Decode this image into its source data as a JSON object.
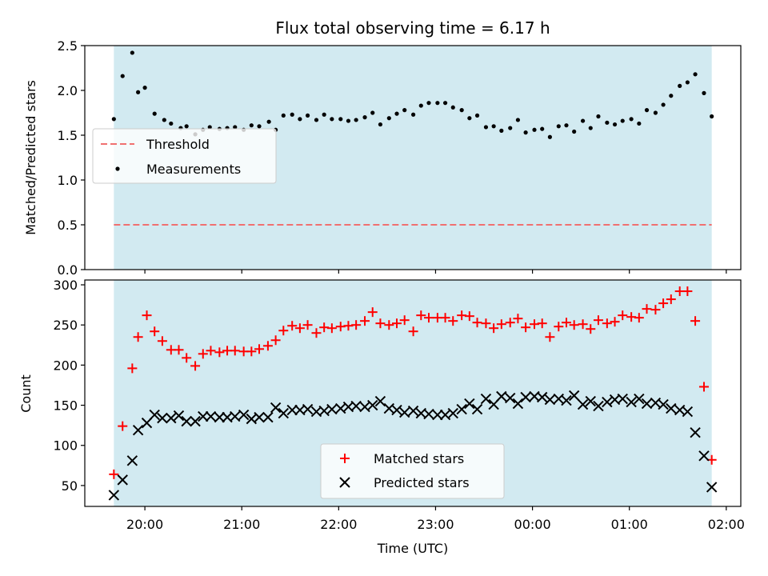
{
  "chart_data": [
    {
      "type": "scatter",
      "title": "Flux total observing time = 6.17 h",
      "ylabel": "Matched/Predicted stars",
      "ylim": [
        0,
        2.5
      ],
      "yticks": [
        "0.0",
        "0.5",
        "1.0",
        "1.5",
        "2.0",
        "2.5"
      ],
      "shaded_span_hours": [
        19.68,
        25.85
      ],
      "shade_color": "#add8e6",
      "legend": {
        "placement": "center-left",
        "threshold_label": "Threshold",
        "measurements_label": "Measurements"
      },
      "threshold": {
        "value": 0.5,
        "color": "#f07070"
      },
      "measurements": {
        "color": "#000000",
        "x": [
          19.68,
          19.77,
          19.87,
          19.93,
          20.0,
          20.1,
          20.2,
          20.27,
          20.37,
          20.43,
          20.52,
          20.6,
          20.67,
          20.77,
          20.85,
          20.93,
          21.02,
          21.1,
          21.18,
          21.28,
          21.35,
          21.43,
          21.52,
          21.6,
          21.68,
          21.77,
          21.85,
          21.93,
          22.02,
          22.1,
          22.18,
          22.27,
          22.35,
          22.43,
          22.52,
          22.6,
          22.68,
          22.77,
          22.85,
          22.93,
          23.02,
          23.1,
          23.18,
          23.27,
          23.35,
          23.43,
          23.52,
          23.6,
          23.68,
          23.77,
          23.85,
          23.93,
          24.02,
          24.1,
          24.18,
          24.27,
          24.35,
          24.43,
          24.52,
          24.6,
          24.68,
          24.77,
          24.85,
          24.93,
          25.02,
          25.1,
          25.18,
          25.27,
          25.35,
          25.43,
          25.52,
          25.6,
          25.68,
          25.77,
          25.85
        ],
        "y": [
          1.68,
          2.16,
          2.42,
          1.98,
          2.03,
          1.74,
          1.67,
          1.63,
          1.58,
          1.6,
          1.51,
          1.56,
          1.59,
          1.57,
          1.58,
          1.59,
          1.56,
          1.61,
          1.6,
          1.65,
          1.56,
          1.72,
          1.73,
          1.68,
          1.72,
          1.67,
          1.73,
          1.68,
          1.68,
          1.66,
          1.67,
          1.7,
          1.75,
          1.62,
          1.69,
          1.74,
          1.78,
          1.73,
          1.83,
          1.86,
          1.86,
          1.86,
          1.81,
          1.78,
          1.69,
          1.72,
          1.59,
          1.6,
          1.55,
          1.58,
          1.67,
          1.53,
          1.56,
          1.57,
          1.48,
          1.6,
          1.61,
          1.54,
          1.66,
          1.58,
          1.71,
          1.64,
          1.62,
          1.66,
          1.68,
          1.63,
          1.78,
          1.75,
          1.84,
          1.94,
          2.05,
          2.09,
          2.18,
          1.97,
          1.71
        ]
      }
    },
    {
      "type": "scatter",
      "ylabel": "Count",
      "xlabel": "Time (UTC)",
      "ylim": [
        24,
        306
      ],
      "yticks": [
        "50",
        "100",
        "150",
        "200",
        "250",
        "300"
      ],
      "xticks": [
        "20:00",
        "21:00",
        "22:00",
        "23:00",
        "00:00",
        "01:00",
        "02:00"
      ],
      "xlim_hours": [
        19.38,
        26.15
      ],
      "shaded_span_hours": [
        19.68,
        25.85
      ],
      "shade_color": "#add8e6",
      "legend": {
        "placement": "lower-center"
      },
      "series": [
        {
          "name": "Matched stars",
          "marker": "plus",
          "color": "#ff0000",
          "x": [
            19.68,
            19.77,
            19.87,
            19.93,
            20.02,
            20.1,
            20.18,
            20.27,
            20.35,
            20.43,
            20.52,
            20.6,
            20.68,
            20.77,
            20.85,
            20.93,
            21.02,
            21.1,
            21.18,
            21.27,
            21.35,
            21.43,
            21.52,
            21.6,
            21.68,
            21.77,
            21.85,
            21.93,
            22.02,
            22.1,
            22.18,
            22.27,
            22.35,
            22.43,
            22.52,
            22.6,
            22.68,
            22.77,
            22.85,
            22.93,
            23.02,
            23.1,
            23.18,
            23.27,
            23.35,
            23.43,
            23.52,
            23.6,
            23.68,
            23.77,
            23.85,
            23.93,
            24.02,
            24.1,
            24.18,
            24.27,
            24.35,
            24.43,
            24.52,
            24.6,
            24.68,
            24.77,
            24.85,
            24.93,
            25.02,
            25.1,
            25.18,
            25.27,
            25.35,
            25.43,
            25.52,
            25.6,
            25.68,
            25.77,
            25.85
          ],
          "y": [
            64,
            124,
            196,
            235,
            262,
            242,
            230,
            219,
            219,
            209,
            199,
            214,
            218,
            216,
            218,
            218,
            217,
            217,
            220,
            224,
            231,
            243,
            249,
            246,
            250,
            240,
            247,
            246,
            248,
            249,
            250,
            255,
            266,
            252,
            250,
            252,
            256,
            242,
            262,
            259,
            259,
            259,
            255,
            262,
            261,
            253,
            252,
            246,
            251,
            253,
            258,
            247,
            251,
            252,
            235,
            248,
            253,
            250,
            251,
            245,
            256,
            252,
            254,
            262,
            260,
            259,
            270,
            269,
            277,
            282,
            292,
            292,
            255,
            173,
            82
          ]
        },
        {
          "name": "Predicted stars",
          "marker": "x",
          "color": "#000000",
          "x": [
            19.68,
            19.77,
            19.87,
            19.93,
            20.02,
            20.1,
            20.18,
            20.27,
            20.35,
            20.43,
            20.52,
            20.6,
            20.68,
            20.77,
            20.85,
            20.93,
            21.02,
            21.1,
            21.18,
            21.27,
            21.35,
            21.43,
            21.52,
            21.6,
            21.68,
            21.77,
            21.85,
            21.93,
            22.02,
            22.1,
            22.18,
            22.27,
            22.35,
            22.43,
            22.52,
            22.6,
            22.68,
            22.77,
            22.85,
            22.93,
            23.02,
            23.1,
            23.18,
            23.27,
            23.35,
            23.43,
            23.52,
            23.6,
            23.68,
            23.77,
            23.85,
            23.93,
            24.02,
            24.1,
            24.18,
            24.27,
            24.35,
            24.43,
            24.52,
            24.6,
            24.68,
            24.77,
            24.85,
            24.93,
            25.02,
            25.1,
            25.18,
            25.27,
            25.35,
            25.43,
            25.52,
            25.6,
            25.68,
            25.77,
            25.85
          ],
          "y": [
            38,
            57,
            81,
            119,
            128,
            138,
            134,
            134,
            137,
            130,
            130,
            136,
            136,
            135,
            135,
            136,
            138,
            133,
            135,
            135,
            147,
            140,
            144,
            144,
            145,
            142,
            143,
            145,
            146,
            148,
            149,
            148,
            150,
            155,
            146,
            144,
            141,
            143,
            140,
            139,
            138,
            138,
            140,
            145,
            152,
            145,
            158,
            151,
            161,
            159,
            152,
            160,
            161,
            160,
            157,
            158,
            156,
            162,
            151,
            155,
            149,
            154,
            157,
            158,
            154,
            158,
            152,
            153,
            151,
            146,
            144,
            142,
            116,
            87,
            48
          ]
        }
      ]
    }
  ]
}
